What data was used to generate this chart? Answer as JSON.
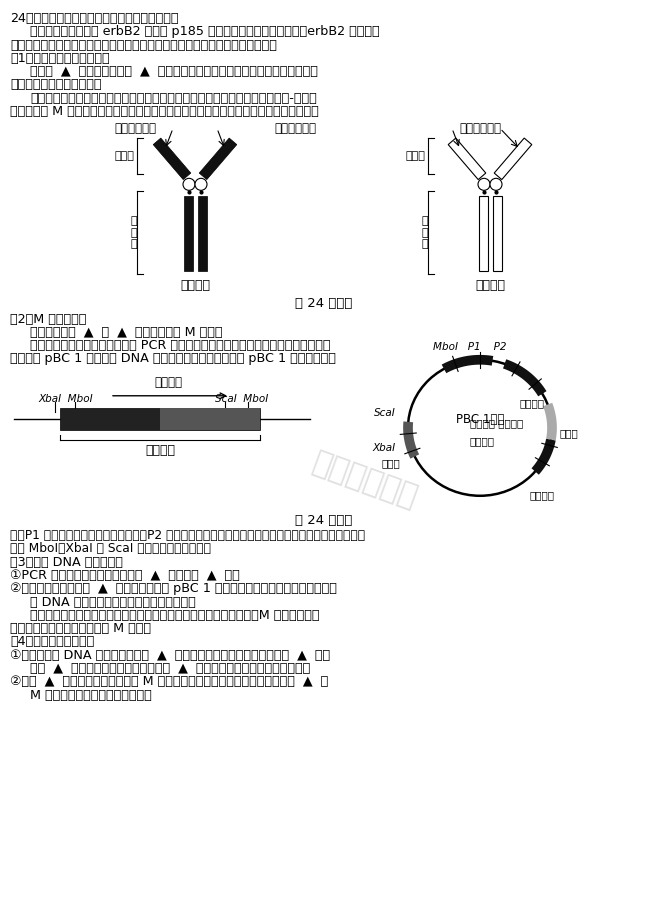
{
  "bg_color": "#ffffff",
  "lh": 0.0148,
  "fs": 9.2,
  "fs_small": 8.0,
  "fs_note": 8.8,
  "watermark_text": "公众号：高中",
  "lines_top": [
    "24．结合所学知识及下列资料，完成相关设计。",
    "资料一：人原癌基因 erbB2 编码的 p185 蛋白可存在于肿瘤细胞膜上，erbB2 的过量表",
    "达与肿瘤细胞侵袭、转移密切相关，人体自身免疫系统通常不会产生相应抗体。",
    "（1）鼠源单克隆抗体的获取",
    "抗体由  ▲  细胞分泌，可将  ▲  注入小鼠体内，经杂交瘮技术获得相应的鼠源单",
    "克隆抗体，以期治疗肿瘤。",
    "资料二：鼠源抗体的恒定区易被人体免疫系统识别而失去作用，研制、接种人-鼠嵌合",
    "抗体（简称 M 抗体）可降低免疫排斥，用于肿瘤治疗。鼠源、人源抗体结构如图甲所示。"
  ],
  "label_jia": "第 24 题图甲",
  "lines_sec2": [
    "（2）M 抗体的设计",
    "可将图示中的  ▲  与  ▲  组合，设计出 M 抗体。",
    "资料三：获得相关基因后，利用 PCR 技术进行融合得到目的基因，可选择与乳腺细胞",
    "表达载体 pBC 1 构建重组 DNA 分子。目的基因、表达载体 pBC 1 如图乙所示。"
  ],
  "label_yi": "第 24 题图乙",
  "lines_note": [
    "注：P1 为山羊乳腺特异性表达启动子，P2 为四环素诱导启动子（必须在四环素存在时才能起作用）；限",
    "制酶 MboⅠ、XbaⅠ 与 ScaⅠ 的识别序列均不相同。"
  ],
  "lines_sec3": [
    "（3）重组 DNA 分子的构建",
    "①PCR 扩增图示目的基因时需加入  ▲  种引物和  ▲  酶。",
    "②本实验应选择限制酶  ▲  切割目的基因与 pBC 1 载体，将酶切产物正确连接后形成重",
    "组 DNA 分子，以便后续通过荧光检测筛选。",
    "资料四：培育转基因小鼠，让目的基因在小鼠乳腺中表达。经检测，M 抗体的相关基",
    "因都能表达，也能组装并分泌 M 抗体。"
  ],
  "lines_sec4": [
    "（4）转基因小鼠的培育",
    "①通常将重组 DNA 分子导入小鼠的  ▲  （填细胞名称），在培养液中加入  ▲  后，",
    "发出  ▲  荧光的即为目标细胞，再经过  ▲  等胚胎工程技术获得转基因小鼠。",
    "②通过  ▲  技术检测小鼠乳汁中的 M 抗体水平，发现其含量较低，原因可能有  ▲  、",
    "M 抗体的组装及分泌过程受阔等。"
  ]
}
